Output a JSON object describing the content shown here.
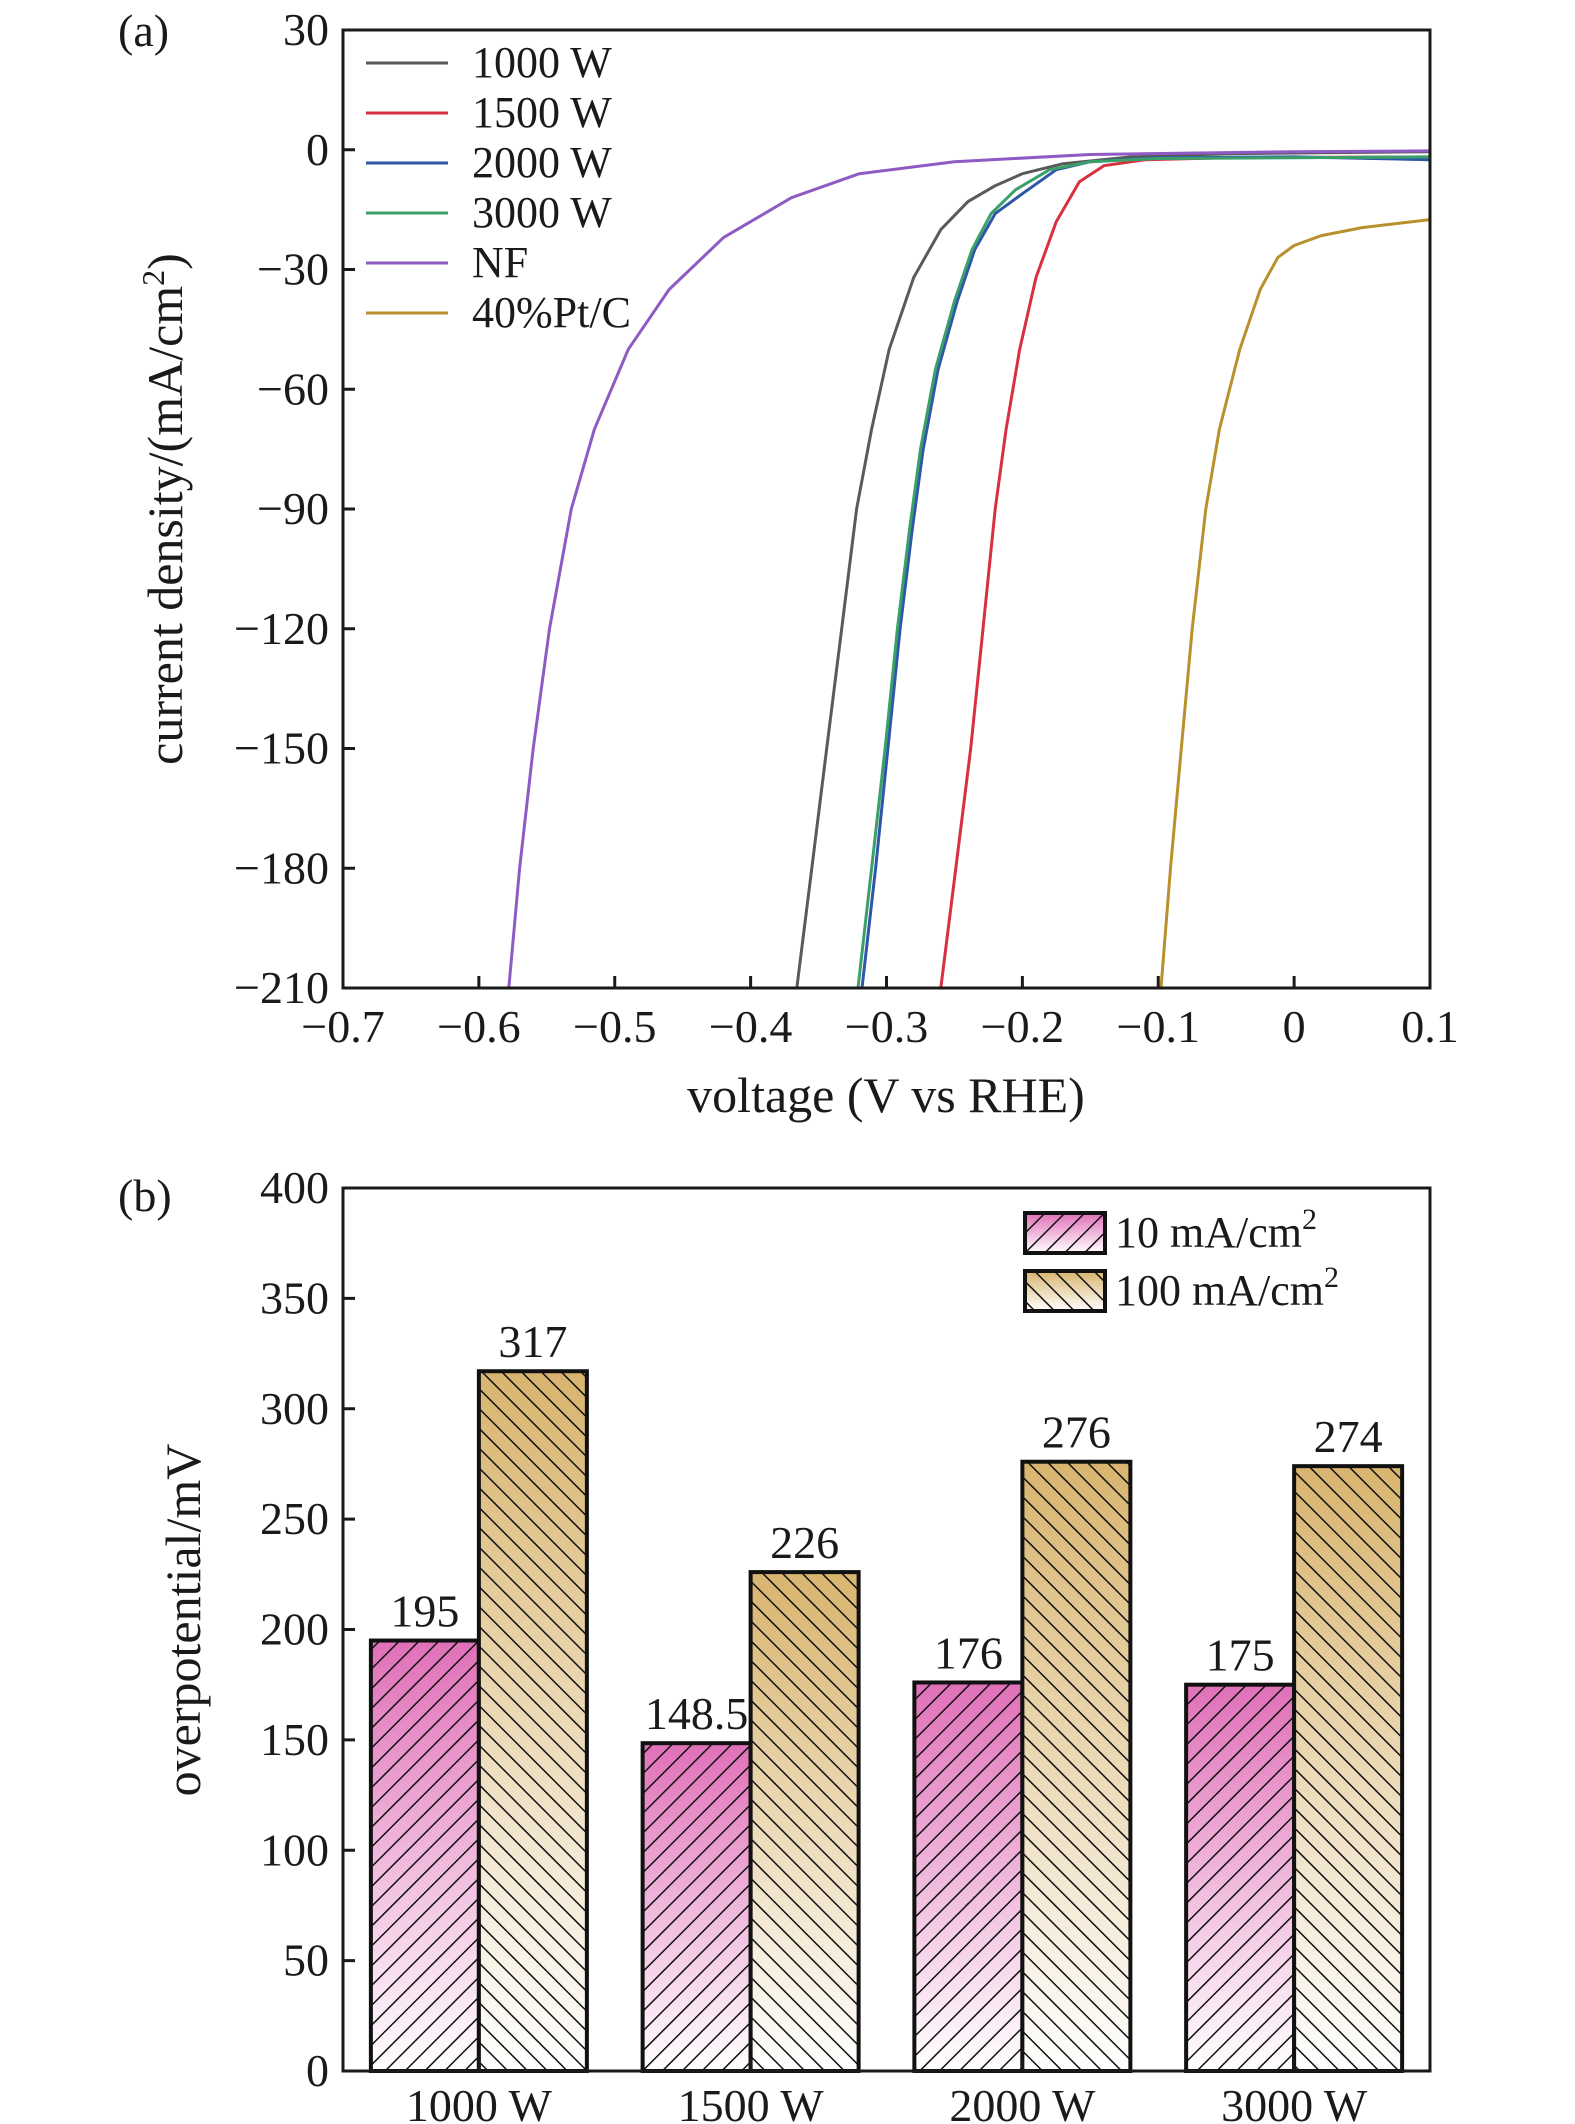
{
  "chart_data": [
    {
      "panel_label": "(a)",
      "type": "line",
      "xlabel": "voltage (V vs RHE)",
      "ylabel": "current density/(mA/cm²)",
      "xlim": [
        -0.7,
        0.1
      ],
      "ylim": [
        -210,
        30
      ],
      "x_ticks": [
        -0.7,
        -0.6,
        -0.5,
        -0.4,
        -0.3,
        -0.2,
        -0.1,
        0,
        0.1
      ],
      "x_tick_labels": [
        "−0.7",
        "−0.6",
        "−0.5",
        "−0.4",
        "−0.3",
        "−0.2",
        "−0.1",
        "0",
        "0.1"
      ],
      "y_ticks": [
        30,
        0,
        -30,
        -60,
        -90,
        -120,
        -150,
        -180,
        -210
      ],
      "y_tick_labels": [
        "30",
        "0",
        "−30",
        "−60",
        "−90",
        "−120",
        "−150",
        "−180",
        "−210"
      ],
      "grid": false,
      "legend_position": "top-left",
      "series": [
        {
          "name": "1000 W",
          "color": "#5a5a5a",
          "points": [
            [
              -0.366,
              -210
            ],
            [
              -0.355,
              -180
            ],
            [
              -0.344,
              -150
            ],
            [
              -0.333,
              -120
            ],
            [
              -0.322,
              -90
            ],
            [
              -0.311,
              -70
            ],
            [
              -0.298,
              -50
            ],
            [
              -0.28,
              -32
            ],
            [
              -0.26,
              -20
            ],
            [
              -0.24,
              -13
            ],
            [
              -0.22,
              -9
            ],
            [
              -0.2,
              -6
            ],
            [
              -0.17,
              -3.5
            ],
            [
              -0.12,
              -1.8
            ],
            [
              -0.05,
              -1
            ],
            [
              0.1,
              -0.5
            ]
          ]
        },
        {
          "name": "1500 W",
          "color": "#d93040",
          "points": [
            [
              -0.26,
              -210
            ],
            [
              -0.249,
              -180
            ],
            [
              -0.238,
              -150
            ],
            [
              -0.229,
              -120
            ],
            [
              -0.22,
              -90
            ],
            [
              -0.212,
              -70
            ],
            [
              -0.202,
              -50
            ],
            [
              -0.19,
              -32
            ],
            [
              -0.175,
              -18
            ],
            [
              -0.158,
              -8
            ],
            [
              -0.14,
              -4
            ],
            [
              -0.11,
              -2.5
            ],
            [
              -0.05,
              -2
            ],
            [
              0.1,
              -1.8
            ]
          ]
        },
        {
          "name": "2000 W",
          "color": "#2f56a8",
          "points": [
            [
              -0.318,
              -210
            ],
            [
              -0.308,
              -180
            ],
            [
              -0.299,
              -150
            ],
            [
              -0.29,
              -120
            ],
            [
              -0.281,
              -95
            ],
            [
              -0.273,
              -75
            ],
            [
              -0.262,
              -55
            ],
            [
              -0.248,
              -38
            ],
            [
              -0.235,
              -25
            ],
            [
              -0.22,
              -16
            ],
            [
              -0.2,
              -11
            ],
            [
              -0.175,
              -5
            ],
            [
              -0.15,
              -3
            ],
            [
              -0.1,
              -2
            ],
            [
              0,
              -1.8
            ],
            [
              0.1,
              -2.5
            ]
          ]
        },
        {
          "name": "3000 W",
          "color": "#3aa06a",
          "points": [
            [
              -0.321,
              -210
            ],
            [
              -0.311,
              -180
            ],
            [
              -0.301,
              -150
            ],
            [
              -0.292,
              -120
            ],
            [
              -0.283,
              -95
            ],
            [
              -0.275,
              -75
            ],
            [
              -0.264,
              -55
            ],
            [
              -0.25,
              -38
            ],
            [
              -0.237,
              -25
            ],
            [
              -0.223,
              -16
            ],
            [
              -0.205,
              -10
            ],
            [
              -0.18,
              -5
            ],
            [
              -0.15,
              -3
            ],
            [
              -0.1,
              -2.2
            ],
            [
              0,
              -2
            ],
            [
              0.1,
              -1.8
            ]
          ]
        },
        {
          "name": "NF",
          "color": "#8e5bc4",
          "points": [
            [
              -0.578,
              -210
            ],
            [
              -0.57,
              -180
            ],
            [
              -0.56,
              -150
            ],
            [
              -0.548,
              -120
            ],
            [
              -0.532,
              -90
            ],
            [
              -0.515,
              -70
            ],
            [
              -0.49,
              -50
            ],
            [
              -0.46,
              -35
            ],
            [
              -0.42,
              -22
            ],
            [
              -0.37,
              -12
            ],
            [
              -0.32,
              -6
            ],
            [
              -0.25,
              -3
            ],
            [
              -0.15,
              -1.2
            ],
            [
              0,
              -0.5
            ],
            [
              0.1,
              -0.3
            ]
          ]
        },
        {
          "name": "40%Pt/C",
          "color": "#b8912c",
          "points": [
            [
              -0.098,
              -210
            ],
            [
              -0.091,
              -180
            ],
            [
              -0.083,
              -150
            ],
            [
              -0.075,
              -120
            ],
            [
              -0.065,
              -90
            ],
            [
              -0.055,
              -70
            ],
            [
              -0.04,
              -50
            ],
            [
              -0.025,
              -35
            ],
            [
              -0.012,
              -27
            ],
            [
              0,
              -24
            ],
            [
              0.02,
              -21.5
            ],
            [
              0.05,
              -19.5
            ],
            [
              0.1,
              -17.5
            ]
          ]
        }
      ]
    },
    {
      "panel_label": "(b)",
      "type": "bar",
      "xlabel": "",
      "ylabel": "overpotential/mV",
      "ylim": [
        0,
        400
      ],
      "y_ticks": [
        0,
        50,
        100,
        150,
        200,
        250,
        300,
        350,
        400
      ],
      "y_tick_labels": [
        "0",
        "50",
        "100",
        "150",
        "200",
        "250",
        "300",
        "350",
        "400"
      ],
      "categories": [
        "1000 W",
        "1500 W",
        "2000 W",
        "3000 W"
      ],
      "grid": false,
      "legend_position": "top-right",
      "series": [
        {
          "name": "10 mA/cm",
          "name_sup": "2",
          "color": "#e070b8",
          "values": [
            195,
            148.5,
            176,
            175
          ],
          "value_labels": [
            "195",
            "148.5",
            "176",
            "175"
          ]
        },
        {
          "name": "100 mA/cm",
          "name_sup": "2",
          "color": "#d8b46e",
          "values": [
            317,
            226,
            276,
            274
          ],
          "value_labels": [
            "317",
            "226",
            "276",
            "274"
          ]
        }
      ]
    }
  ]
}
